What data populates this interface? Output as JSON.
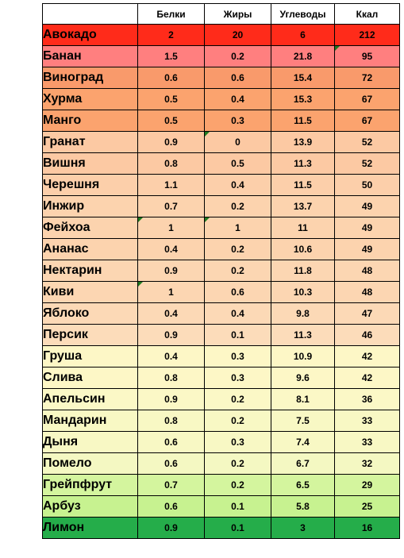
{
  "headers": [
    "",
    "Белки",
    "Жиры",
    "Углеводы",
    "Ккал"
  ],
  "rows": [
    {
      "name": "Авокадо",
      "protein": "2",
      "fat": "20",
      "carbs": "6",
      "kcal": "212",
      "color": "#ff2b1a"
    },
    {
      "name": "Банан",
      "protein": "1.5",
      "fat": "0.2",
      "carbs": "21.8",
      "kcal": "95",
      "color": "#ff7f7f"
    },
    {
      "name": "Виноград",
      "protein": "0.6",
      "fat": "0.6",
      "carbs": "15.4",
      "kcal": "72",
      "color": "#f99a6b"
    },
    {
      "name": "Хурма",
      "protein": "0.5",
      "fat": "0.4",
      "carbs": "15.3",
      "kcal": "67",
      "color": "#fba36e"
    },
    {
      "name": "Манго",
      "protein": "0.5",
      "fat": "0.3",
      "carbs": "11.5",
      "kcal": "67",
      "color": "#fba36e"
    },
    {
      "name": "Гранат",
      "protein": "0.9",
      "fat": "0",
      "carbs": "13.9",
      "kcal": "52",
      "color": "#fcc9a3"
    },
    {
      "name": "Вишня",
      "protein": "0.8",
      "fat": "0.5",
      "carbs": "11.3",
      "kcal": "52",
      "color": "#fcc9a3"
    },
    {
      "name": "Черешня",
      "protein": "1.1",
      "fat": "0.4",
      "carbs": "11.5",
      "kcal": "50",
      "color": "#fccfaa"
    },
    {
      "name": "Инжир",
      "protein": "0.7",
      "fat": "0.2",
      "carbs": "13.7",
      "kcal": "49",
      "color": "#fcd3ae"
    },
    {
      "name": "Фейхоа",
      "protein": "1",
      "fat": "1",
      "carbs": "11",
      "kcal": "49",
      "color": "#fcd3ae"
    },
    {
      "name": "Ананас",
      "protein": "0.4",
      "fat": "0.2",
      "carbs": "10.6",
      "kcal": "49",
      "color": "#fcd3ae"
    },
    {
      "name": "Нектарин",
      "protein": "0.9",
      "fat": "0.2",
      "carbs": "11.8",
      "kcal": "48",
      "color": "#fcd6b2"
    },
    {
      "name": "Киви",
      "protein": "1",
      "fat": "0.6",
      "carbs": "10.3",
      "kcal": "48",
      "color": "#fcd6b2"
    },
    {
      "name": "Яблоко",
      "protein": "0.4",
      "fat": "0.4",
      "carbs": "9.8",
      "kcal": "47",
      "color": "#fcd9b6"
    },
    {
      "name": "Персик",
      "protein": "0.9",
      "fat": "0.1",
      "carbs": "11.3",
      "kcal": "46",
      "color": "#fcdcba"
    },
    {
      "name": "Груша",
      "protein": "0.4",
      "fat": "0.3",
      "carbs": "10.9",
      "kcal": "42",
      "color": "#fdf7c6"
    },
    {
      "name": "Слива",
      "protein": "0.8",
      "fat": "0.3",
      "carbs": "9.6",
      "kcal": "42",
      "color": "#fdf7c6"
    },
    {
      "name": "Апельсин",
      "protein": "0.9",
      "fat": "0.2",
      "carbs": "8.1",
      "kcal": "36",
      "color": "#fbf8c6"
    },
    {
      "name": "Мандарин",
      "protein": "0.8",
      "fat": "0.2",
      "carbs": "7.5",
      "kcal": "33",
      "color": "#f8f8c4"
    },
    {
      "name": "Дыня",
      "protein": "0.6",
      "fat": "0.3",
      "carbs": "7.4",
      "kcal": "33",
      "color": "#f8f8c4"
    },
    {
      "name": "Помело",
      "protein": "0.6",
      "fat": "0.2",
      "carbs": "6.7",
      "kcal": "32",
      "color": "#f4f8c2"
    },
    {
      "name": "Грейпфрут",
      "protein": "0.7",
      "fat": "0.2",
      "carbs": "6.5",
      "kcal": "29",
      "color": "#d4f59e"
    },
    {
      "name": "Арбуз",
      "protein": "0.6",
      "fat": "0.1",
      "carbs": "5.8",
      "kcal": "25",
      "color": "#c7f290"
    },
    {
      "name": "Лимон",
      "protein": "0.9",
      "fat": "0.1",
      "carbs": "3",
      "kcal": "16",
      "color": "#25ad4a"
    }
  ]
}
